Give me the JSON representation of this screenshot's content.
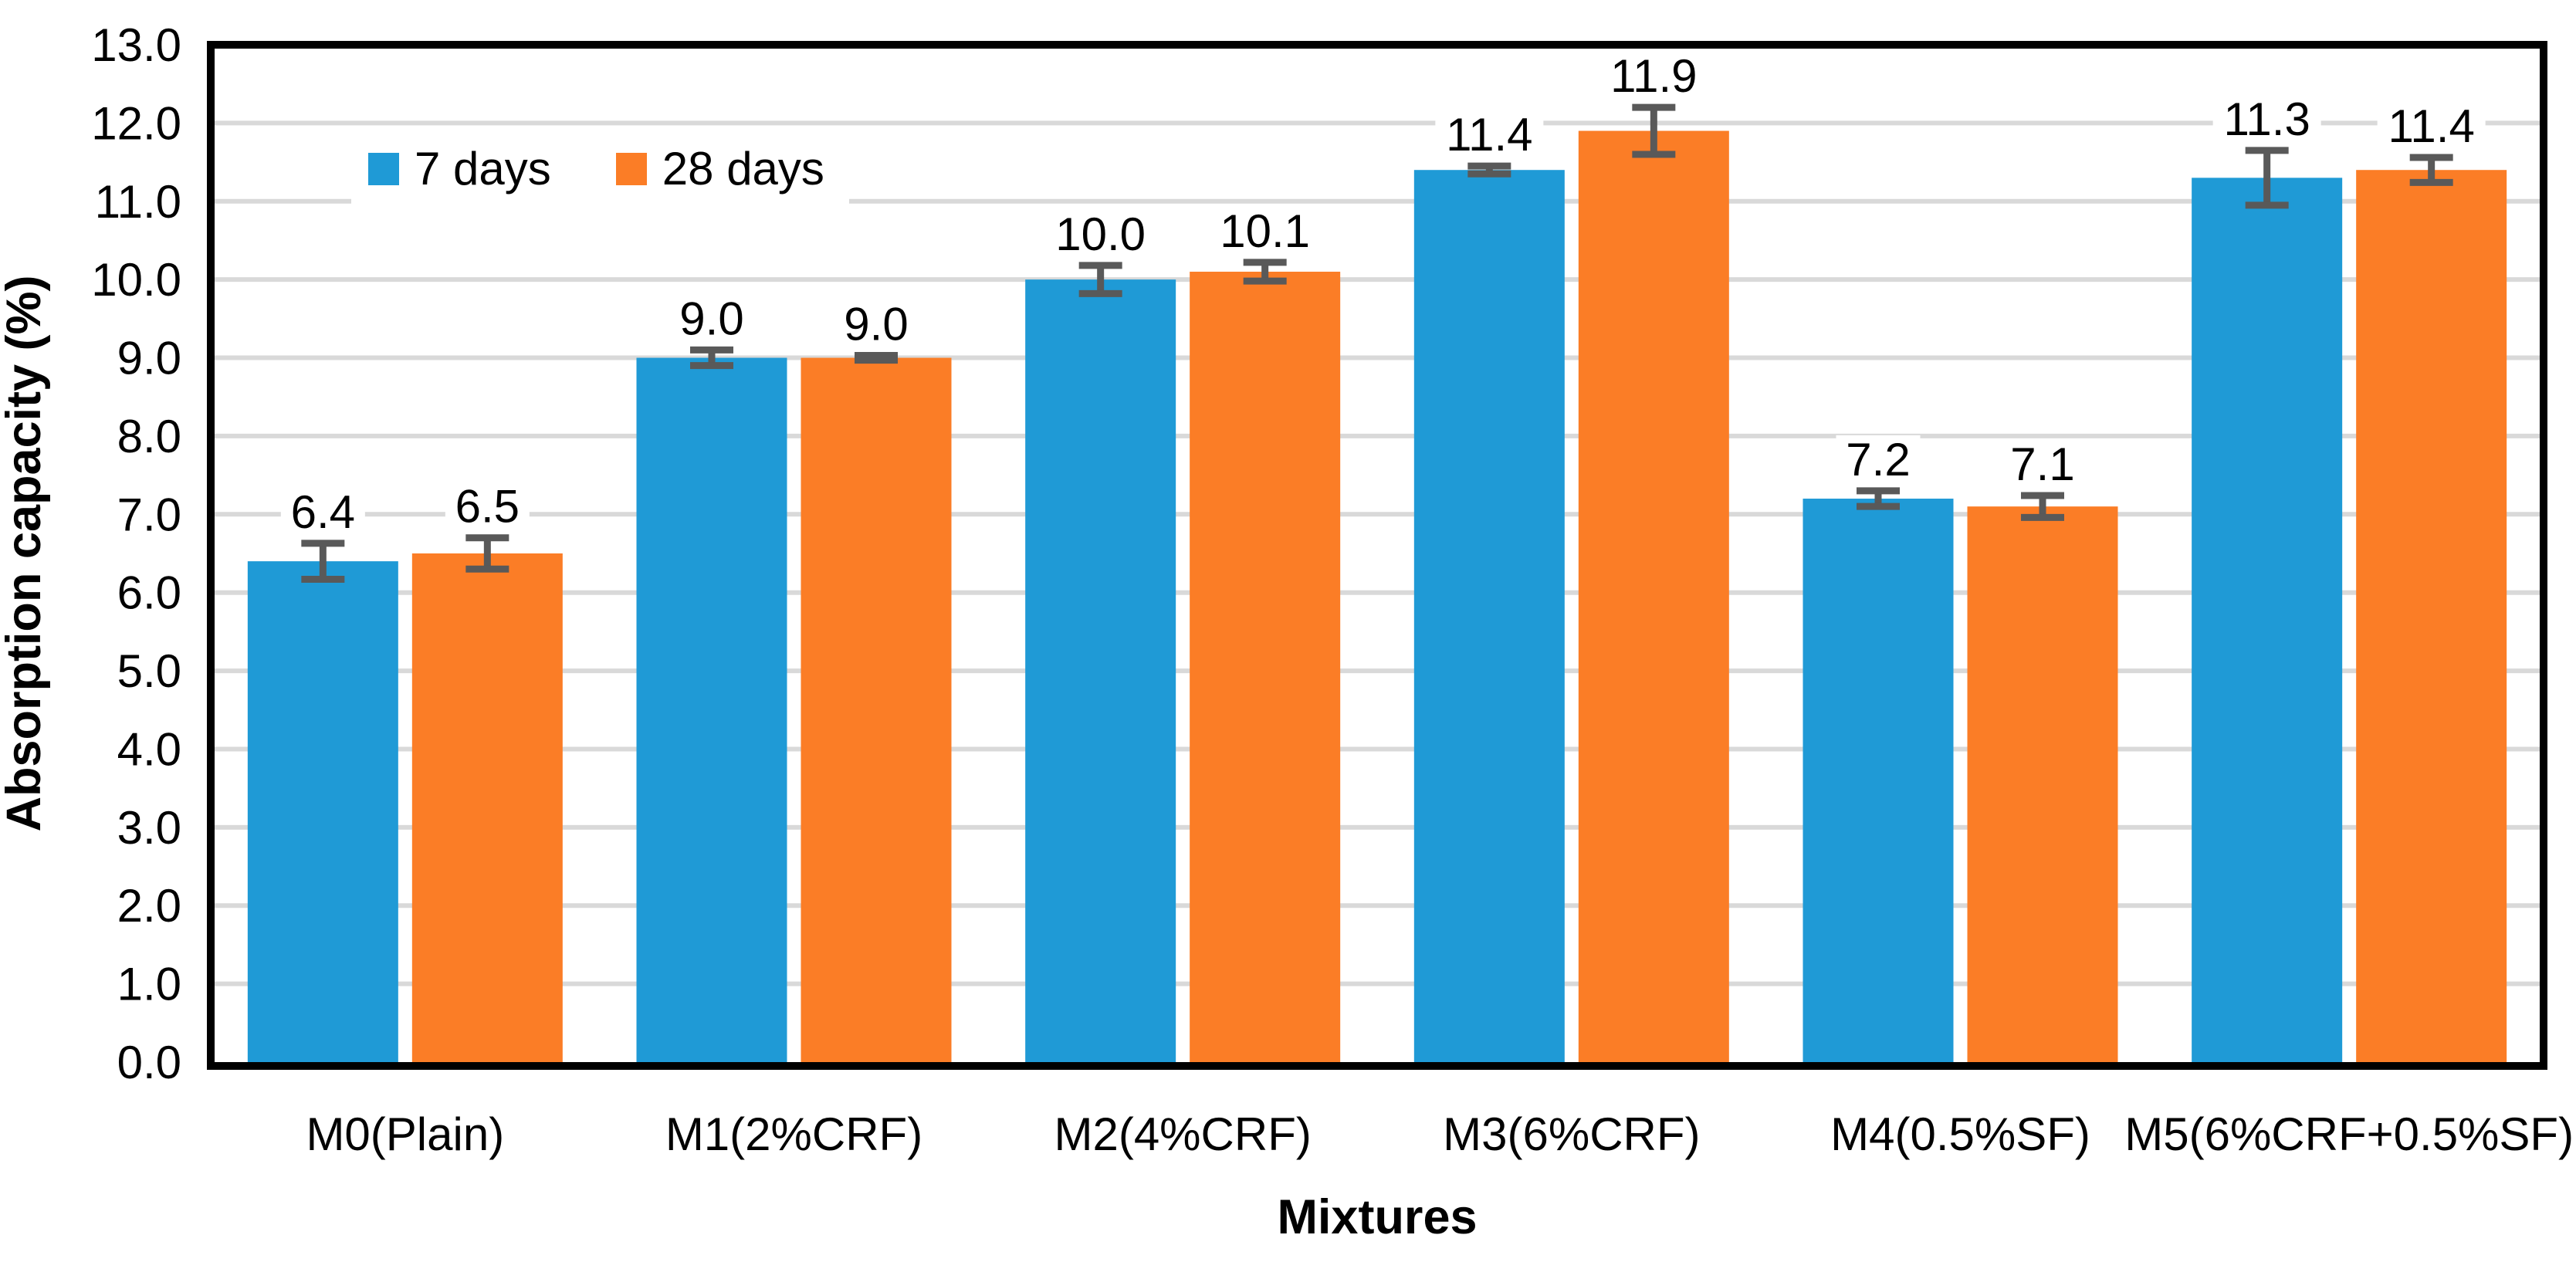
{
  "chart_data": {
    "type": "bar",
    "title": "",
    "xlabel": "Mixtures",
    "ylabel": "Absorption capacity (%)",
    "categories": [
      "M0(Plain)",
      "M1(2%CRF)",
      "M2(4%CRF)",
      "M3(6%CRF)",
      "M4(0.5%SF)",
      "M5(6%CRF+0.5%SF)"
    ],
    "series": [
      {
        "name": "7 days",
        "color": "#1F9AD6",
        "values": [
          6.4,
          9.0,
          10.0,
          11.4,
          7.2,
          11.3
        ],
        "value_labels": [
          "6.4",
          "9.0",
          "10.0",
          "11.4",
          "7.2",
          "11.3"
        ],
        "errors": [
          0.23,
          0.1,
          0.18,
          0.05,
          0.1,
          0.35
        ]
      },
      {
        "name": "28 days",
        "color": "#FB7D26",
        "values": [
          6.5,
          9.0,
          10.1,
          11.9,
          7.1,
          11.4
        ],
        "value_labels": [
          "6.5",
          "9.0",
          "10.1",
          "11.9",
          "7.1",
          "11.4"
        ],
        "errors": [
          0.2,
          0.03,
          0.12,
          0.3,
          0.14,
          0.16
        ]
      }
    ],
    "ylim": [
      0,
      13
    ],
    "ytick_step": 1,
    "ytick_labels": [
      "0.0",
      "1.0",
      "2.0",
      "3.0",
      "4.0",
      "5.0",
      "6.0",
      "7.0",
      "8.0",
      "9.0",
      "10.0",
      "11.0",
      "12.0",
      "13.0"
    ],
    "grid": true,
    "legend_position": "inside-top-left",
    "legend_labels": [
      "7 days",
      "28 days"
    ],
    "colors": {
      "error_bar": "#595959",
      "gridline": "#D9D9D9",
      "frame": "#000000",
      "background": "#FFFFFF",
      "text": "#000000"
    }
  }
}
